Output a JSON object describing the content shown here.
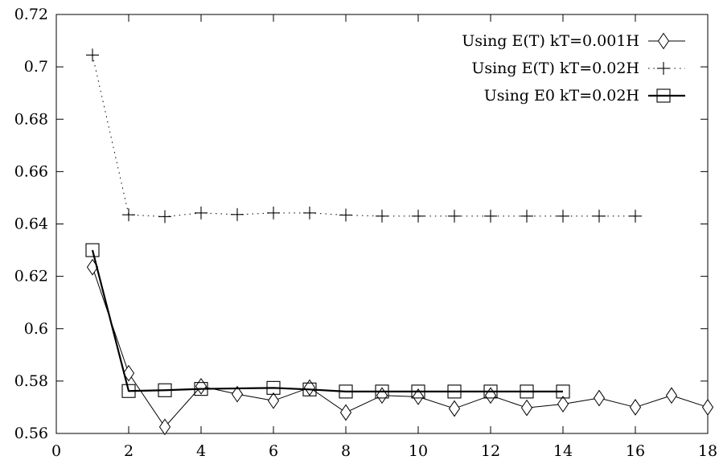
{
  "chart_data": {
    "type": "line",
    "title": "",
    "xlabel": "",
    "ylabel": "",
    "xlim": [
      0,
      18
    ],
    "ylim": [
      0.56,
      0.72
    ],
    "x_ticks": [
      "0",
      "2",
      "4",
      "6",
      "8",
      "10",
      "12",
      "14",
      "16",
      "18"
    ],
    "y_ticks": [
      "0.56",
      "0.58",
      "0.6",
      "0.62",
      "0.64",
      "0.66",
      "0.68",
      "0.7",
      "0.72"
    ],
    "grid": false,
    "legend_position": "top-right",
    "series": [
      {
        "name": "Using E(T) kT=0.001H",
        "marker": "diamond",
        "line_style": "solid-thin",
        "color": "#000000",
        "x": [
          1,
          2,
          3,
          4,
          5,
          6,
          7,
          8,
          9,
          10,
          11,
          12,
          13,
          14,
          15,
          16,
          17,
          18
        ],
        "y": [
          0.6235,
          0.583,
          0.5625,
          0.578,
          0.575,
          0.5725,
          0.5775,
          0.568,
          0.5745,
          0.574,
          0.5695,
          0.5745,
          0.5698,
          0.5712,
          0.5735,
          0.57,
          0.5745,
          0.57
        ]
      },
      {
        "name": "Using E(T) kT=0.02H",
        "marker": "plus",
        "line_style": "dotted",
        "color": "#000000",
        "x": [
          1,
          2,
          3,
          4,
          5,
          6,
          7,
          8,
          9,
          10,
          11,
          12,
          13,
          14,
          15,
          16
        ],
        "y": [
          0.7045,
          0.6435,
          0.6428,
          0.6442,
          0.6436,
          0.6442,
          0.6442,
          0.6434,
          0.643,
          0.643,
          0.643,
          0.643,
          0.643,
          0.643,
          0.643,
          0.643
        ]
      },
      {
        "name": "Using E0 kT=0.02H",
        "marker": "square",
        "line_style": "solid-thick",
        "color": "#000000",
        "x": [
          1,
          2,
          3,
          4,
          6,
          7,
          8,
          9,
          10,
          11,
          12,
          13,
          14
        ],
        "y": [
          0.63,
          0.5762,
          0.5765,
          0.577,
          0.5774,
          0.5768,
          0.576,
          0.576,
          0.576,
          0.576,
          0.576,
          0.576,
          0.576
        ]
      }
    ]
  }
}
